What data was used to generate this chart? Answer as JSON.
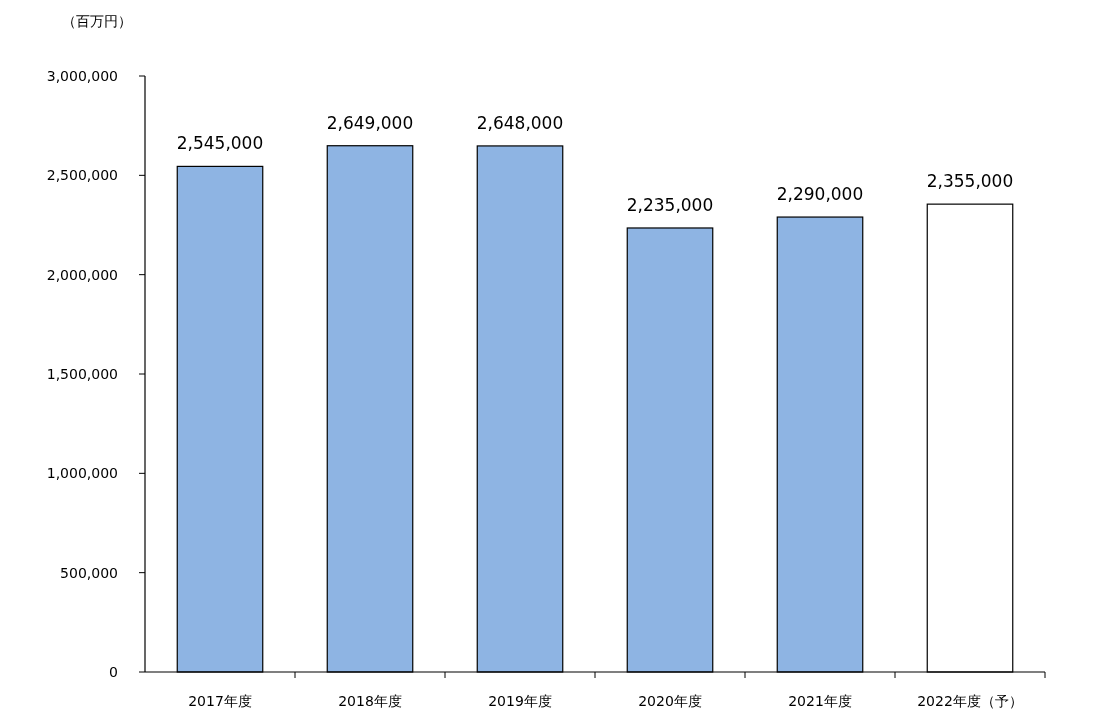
{
  "chart_data": {
    "type": "bar",
    "ylabel": "（百万円）",
    "categories": [
      "2017年度",
      "2018年度",
      "2019年度",
      "2020年度",
      "2021年度",
      "2022年度（予）"
    ],
    "values": [
      2545000,
      2649000,
      2648000,
      2235000,
      2290000,
      2355000
    ],
    "colors": [
      "#8eb4e3",
      "#8eb4e3",
      "#8eb4e3",
      "#8eb4e3",
      "#8eb4e3",
      "#ffffff"
    ],
    "ylim": [
      0,
      3000000
    ],
    "yticks": [
      {
        "value": 0,
        "label": "0"
      },
      {
        "value": 500000,
        "label": "500,000"
      },
      {
        "value": 1000000,
        "label": "1,000,000"
      },
      {
        "value": 1500000,
        "label": "1,500,000"
      },
      {
        "value": 2000000,
        "label": "2,000,000"
      },
      {
        "value": 2500000,
        "label": "2,500,000"
      },
      {
        "value": 3000000,
        "label": "3,000,000"
      }
    ],
    "value_labels": [
      "2,545,000",
      "2,649,000",
      "2,648,000",
      "2,235,000",
      "2,290,000",
      "2,355,000"
    ],
    "grid": false
  }
}
